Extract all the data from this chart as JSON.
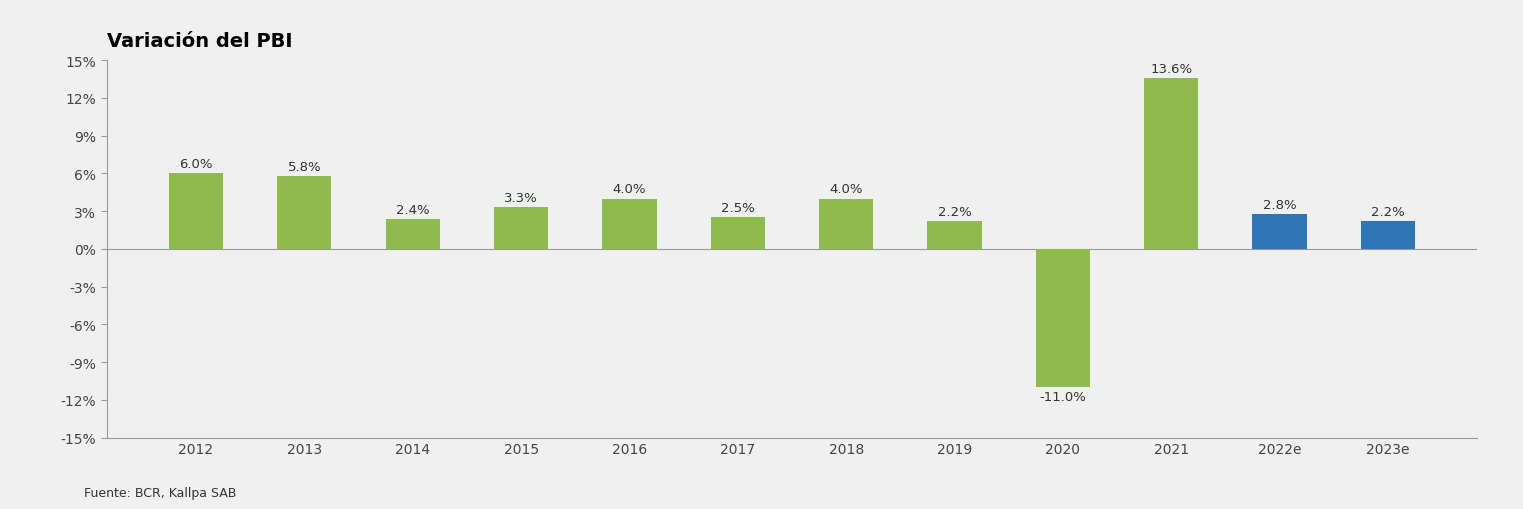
{
  "categories": [
    "2012",
    "2013",
    "2014",
    "2015",
    "2016",
    "2017",
    "2018",
    "2019",
    "2020",
    "2021",
    "2022e",
    "2023e"
  ],
  "values": [
    6.0,
    5.8,
    2.4,
    3.3,
    4.0,
    2.5,
    4.0,
    2.2,
    -11.0,
    13.6,
    2.8,
    2.2
  ],
  "bar_colors": [
    "#8fba4e",
    "#8fba4e",
    "#8fba4e",
    "#8fba4e",
    "#8fba4e",
    "#8fba4e",
    "#8fba4e",
    "#8fba4e",
    "#8fba4e",
    "#8fba4e",
    "#2e75b6",
    "#2e75b6"
  ],
  "title": "Variación del PBI",
  "title_fontsize": 14,
  "title_fontweight": "bold",
  "ylim": [
    -15,
    15
  ],
  "yticks": [
    -15,
    -12,
    -9,
    -6,
    -3,
    0,
    3,
    6,
    9,
    12,
    15
  ],
  "source_text": "Fuente: BCR, Kallpa SAB",
  "label_color": "#333333",
  "background_color": "#f0f0f0",
  "plot_bg_color": "#f0f0f0",
  "bar_width": 0.5,
  "data_label_fontsize": 9.5,
  "tick_label_fontsize": 10,
  "spine_color": "#999999",
  "zero_line_color": "#999999"
}
